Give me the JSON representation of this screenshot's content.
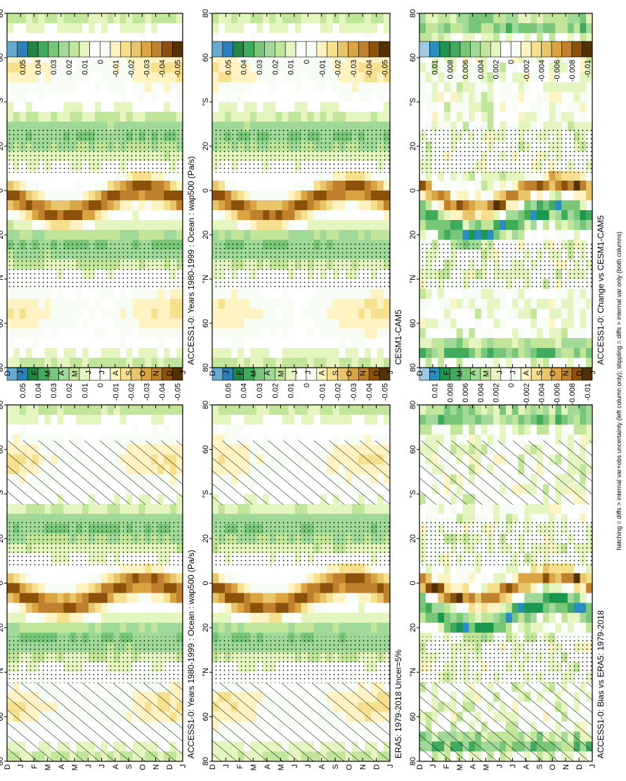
{
  "chart_data": {
    "type": "heatmap",
    "description_axes": "x: month of year (D..J, 14 ticks); y: latitude 80S..80N",
    "footnote": "hatching = diffs > internal var+obs uncertainty (left column only); stippling = diffs > internal var only (both columns)",
    "months": [
      "D",
      "J",
      "F",
      "M",
      "A",
      "M",
      "J",
      "J",
      "A",
      "S",
      "O",
      "N",
      "D",
      "J"
    ],
    "lat_ticks": [
      "80",
      "60",
      "°N",
      "20",
      "0",
      "20",
      "°S",
      "60",
      "80"
    ],
    "colors_main": [
      "#67a9cf",
      "#2c7fb8",
      "#238443",
      "#41ab5d",
      "#78c679",
      "#a1d99b",
      "#c2e699",
      "#e5f5c0",
      "#ffffff",
      "#f7fcf5",
      "#fff3c4",
      "#f6e08d",
      "#e8c56b",
      "#d9a441",
      "#bf812d",
      "#8c510a",
      "#543005"
    ],
    "colors_bias": [
      "#9ecae1",
      "#2b8cbe",
      "#1a9850",
      "#41ab5d",
      "#78c679",
      "#a1d99b",
      "#c2e699",
      "#e5f5c0",
      "#ffffff",
      "#f7fcf5",
      "#fff3c4",
      "#f6e08d",
      "#e8c56b",
      "#d9a441",
      "#bf812d",
      "#8c510a",
      "#543005"
    ],
    "panels": [
      {
        "id": "model",
        "title": "ACCESS1-0: Years 1980-1999 : Ocean : wap500 (Pa/s)",
        "cb_labels": [
          "0.05",
          "0.04",
          "0.03",
          "0.02",
          "0.01",
          "0",
          "-0.01",
          "-0.02",
          "-0.03",
          "-0.04",
          "-0.05"
        ],
        "hatch": true,
        "stipple": true
      },
      {
        "id": "obs",
        "title": "ERA5: 1979-2018 Uncer=5%",
        "cb_labels": [
          "0.05",
          "0.04",
          "0.03",
          "0.02",
          "0.01",
          "0",
          "-0.01",
          "-0.02",
          "-0.03",
          "-0.04",
          "-0.05"
        ],
        "hatch": true,
        "stipple": true
      },
      {
        "id": "bias",
        "title": "ACCESS1-0: Bias vs ERA5: 1979-2018",
        "cb_labels": [
          "0.01",
          "0.008",
          "0.006",
          "0.004",
          "0.002",
          "0",
          "-0.002",
          "-0.004",
          "-0.006",
          "-0.008",
          "-0.01"
        ],
        "hatch": true,
        "stipple": true
      },
      {
        "id": "model2",
        "title": "ACCESS1-0: Years 1980-1999 : Ocean : wap500 (Pa/s)",
        "cb_labels": [
          "0.05",
          "0.04",
          "0.03",
          "0.02",
          "0.01",
          "0",
          "-0.01",
          "-0.02",
          "-0.03",
          "-0.04",
          "-0.05"
        ],
        "hatch": false,
        "stipple": true
      },
      {
        "id": "ref2",
        "title": "CESM1-CAM5",
        "cb_labels": [
          "0.05",
          "0.04",
          "0.03",
          "0.02",
          "0.01",
          "0",
          "-0.01",
          "-0.02",
          "-0.03",
          "-0.04",
          "-0.05"
        ],
        "hatch": false,
        "stipple": true
      },
      {
        "id": "change",
        "title": "ACCESS1-0: Change vs CESM1-CAM5",
        "cb_labels": [
          "0.01",
          "0.008",
          "0.006",
          "0.004",
          "0.002",
          "0",
          "-0.002",
          "-0.004",
          "-0.006",
          "-0.008",
          "-0.01"
        ],
        "hatch": false,
        "stipple": true
      }
    ]
  }
}
